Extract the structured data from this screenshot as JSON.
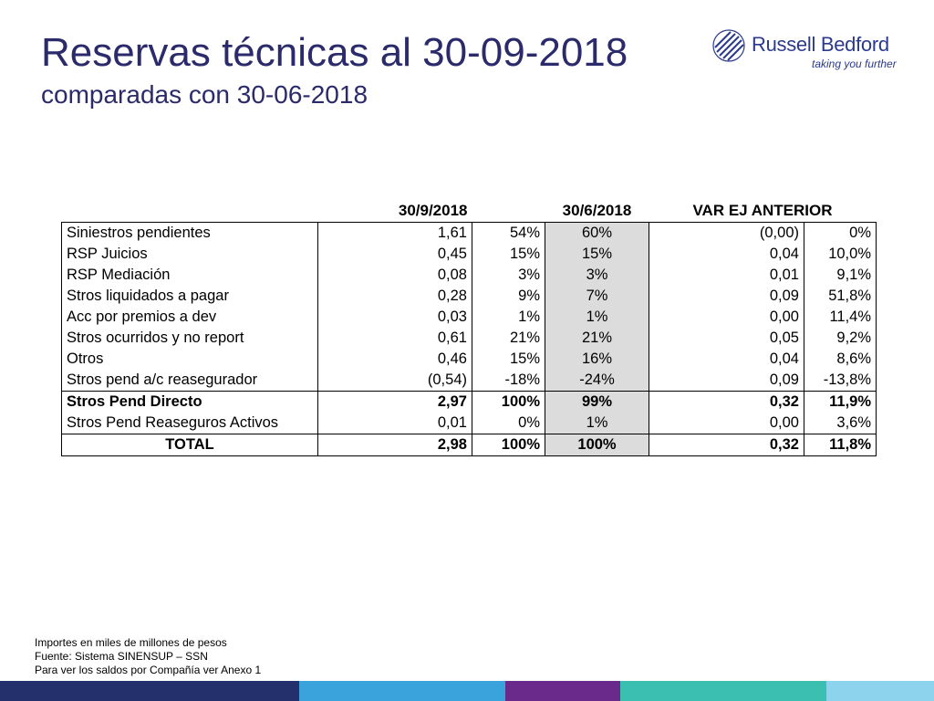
{
  "header": {
    "title": "Reservas técnicas al 30-09-2018",
    "subtitle": "comparadas con 30-06-2018"
  },
  "logo": {
    "name": "Russell Bedford",
    "tagline": "taking you further",
    "color": "#2b3a8c"
  },
  "table": {
    "headers": {
      "current": "30/9/2018",
      "previous": "30/6/2018",
      "variation": "VAR EJ ANTERIOR"
    },
    "rows": [
      {
        "label": "Siniestros pendientes",
        "value": "1,61",
        "pct": "54%",
        "prev_pct": "60%",
        "var": "(0,00)",
        "var_pct": "0%"
      },
      {
        "label": "RSP Juicios",
        "value": "0,45",
        "pct": "15%",
        "prev_pct": "15%",
        "var": "0,04",
        "var_pct": "10,0%"
      },
      {
        "label": "RSP Mediación",
        "value": "0,08",
        "pct": "3%",
        "prev_pct": "3%",
        "var": "0,01",
        "var_pct": "9,1%"
      },
      {
        "label": "Stros liquidados a pagar",
        "value": "0,28",
        "pct": "9%",
        "prev_pct": "7%",
        "var": "0,09",
        "var_pct": "51,8%"
      },
      {
        "label": "Acc por premios a dev",
        "value": "0,03",
        "pct": "1%",
        "prev_pct": "1%",
        "var": "0,00",
        "var_pct": "11,4%"
      },
      {
        "label": "Stros ocurridos y no report",
        "value": "0,61",
        "pct": "21%",
        "prev_pct": "21%",
        "var": "0,05",
        "var_pct": "9,2%"
      },
      {
        "label": "Otros",
        "value": "0,46",
        "pct": "15%",
        "prev_pct": "16%",
        "var": "0,04",
        "var_pct": "8,6%"
      },
      {
        "label": "Stros pend a/c reasegurador",
        "value": "(0,54)",
        "pct": "-18%",
        "prev_pct": "-24%",
        "var": "0,09",
        "var_pct": "-13,8%"
      },
      {
        "label": "Stros Pend Directo",
        "value": "2,97",
        "pct": "100%",
        "prev_pct": "99%",
        "var": "0,32",
        "var_pct": "11,9%"
      },
      {
        "label": "Stros Pend Reaseguros Activos",
        "value": "0,01",
        "pct": "0%",
        "prev_pct": "1%",
        "var": "0,00",
        "var_pct": "3,6%"
      },
      {
        "label": "TOTAL",
        "value": "2,98",
        "pct": "100%",
        "prev_pct": "100%",
        "var": "0,32",
        "var_pct": "11,8%"
      }
    ]
  },
  "footnotes": [
    "Importes en miles de millones de pesos",
    "Fuente: Sistema SINENSUP – SSN",
    "Para ver los saldos por Compañía ver Anexo 1"
  ],
  "colors": {
    "title": "#2b2a6b",
    "shaded_column": "#dcdcdc",
    "bar_navy": "#23306b",
    "bar_blue": "#3aa3dc",
    "bar_purple": "#6a2a8c",
    "bar_teal": "#3bbfb0",
    "bar_light_blue": "#8ed3ee"
  }
}
